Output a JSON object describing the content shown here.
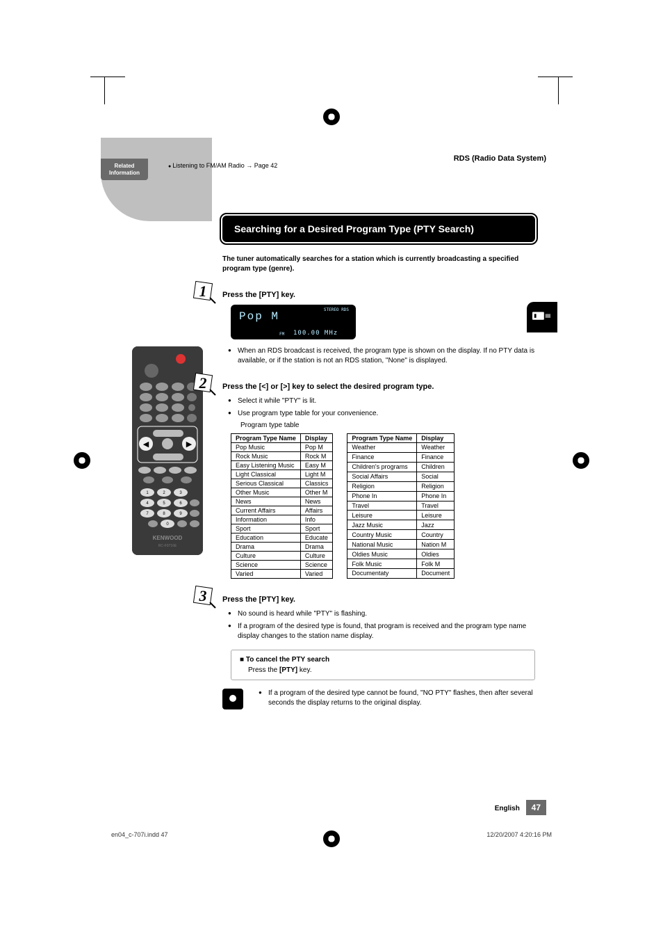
{
  "header": {
    "related_label_1": "Related",
    "related_label_2": "Information",
    "link_text": "Listening to FM/AM Radio → Page 42",
    "section": "RDS (Radio Data System)"
  },
  "title": "Searching for a Desired Program Type (PTY Search)",
  "intro": "The tuner automatically searches for a station which is currently broadcasting a specified program type (genre).",
  "step1": {
    "title": "Press the [PTY] key.",
    "display_main": "Pop M",
    "display_freq": "100.00 MHz",
    "display_fm": "FM",
    "display_tags": "STEREO  RDS",
    "bullet": "When an RDS broadcast is received, the program type is shown on the display. If no PTY data is available, or if the station is not an RDS station, \"None\" is displayed."
  },
  "step2": {
    "title": "Press the [<] or [>] key to select the desired program type.",
    "b1": "Select it while \"PTY\" is lit.",
    "b2": "Use program type table for your convenience.",
    "caption": "Program type table",
    "col1": "Program Type Name",
    "col2": "Display",
    "left": [
      [
        "Pop Music",
        "Pop M"
      ],
      [
        "Rock Music",
        "Rock M"
      ],
      [
        "Easy Listening Music",
        "Easy M"
      ],
      [
        "Light Classical",
        "Light M"
      ],
      [
        "Serious Classical",
        "Classics"
      ],
      [
        "Other Music",
        "Other M"
      ],
      [
        "News",
        "News"
      ],
      [
        "Current Affairs",
        "Affairs"
      ],
      [
        "Information",
        "Info"
      ],
      [
        "Sport",
        "Sport"
      ],
      [
        "Education",
        "Educate"
      ],
      [
        "Drama",
        "Drama"
      ],
      [
        "Culture",
        "Culture"
      ],
      [
        "Science",
        "Science"
      ],
      [
        "Varied",
        "Varied"
      ]
    ],
    "right": [
      [
        "Weather",
        "Weather"
      ],
      [
        "Finance",
        "Finance"
      ],
      [
        "Children's programs",
        "Children"
      ],
      [
        "Social Affairs",
        "Social"
      ],
      [
        "Religion",
        "Religion"
      ],
      [
        "Phone In",
        "Phone In"
      ],
      [
        "Travel",
        "Travel"
      ],
      [
        "Leisure",
        "Leisure"
      ],
      [
        "Jazz Music",
        "Jazz"
      ],
      [
        "Country Music",
        "Country"
      ],
      [
        "National Music",
        "Nation M"
      ],
      [
        "Oldies Music",
        "Oldies"
      ],
      [
        "Folk Music",
        "Folk M"
      ],
      [
        "Documentaty",
        "Document"
      ]
    ]
  },
  "step3": {
    "title": "Press the [PTY] key.",
    "b1": "No sound is heard while \"PTY\" is flashing.",
    "b2": "If a program of the desired type is found, that program is received and the program type name display changes to the station name display.",
    "cancel_title": "To cancel the PTY search",
    "cancel_body_a": "Press the ",
    "cancel_body_b": "[PTY]",
    "cancel_body_c": " key."
  },
  "tip": "If a program of the desired type cannot be found, \"NO PTY\" flashes, then after several seconds the display returns to the original display.",
  "footer": {
    "lang": "English",
    "page": "47",
    "indd": "en04_c-707i.indd   47",
    "ts": "12/20/2007   4:20:16 PM"
  },
  "colors": {
    "grey": "#bfbfbf",
    "dark_grey": "#6a6a6a",
    "black": "#000000"
  }
}
